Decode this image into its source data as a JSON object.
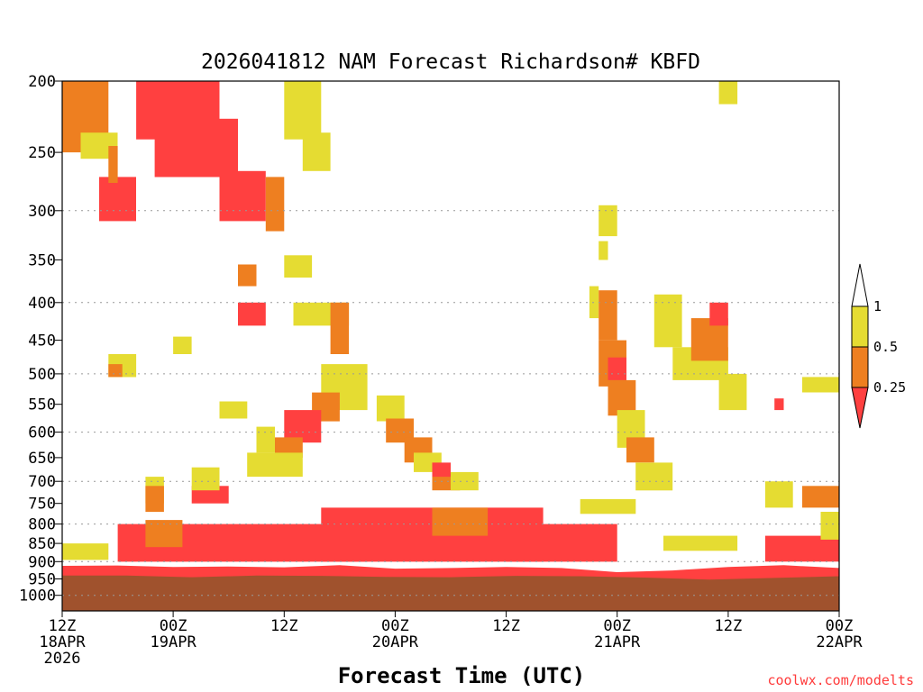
{
  "chart_data": {
    "type": "heatmap",
    "title": "2026041812 NAM Forecast Richardson# KBFD",
    "xlabel": "Forecast Time (UTC)",
    "ylabel": "",
    "source": "coolwx.com/modelts",
    "xlim_hours": [
      0,
      84
    ],
    "ylim_hpa": [
      200,
      1050
    ],
    "y_scale": "log",
    "y_ticks": [
      200,
      250,
      300,
      350,
      400,
      450,
      500,
      550,
      600,
      650,
      700,
      750,
      800,
      850,
      900,
      950,
      1000
    ],
    "y_gridlines": [
      300,
      400,
      500,
      600,
      700,
      800,
      900,
      1000
    ],
    "x_ticks": [
      {
        "hour": 0,
        "lines": [
          "12Z",
          "18APR",
          "2026"
        ]
      },
      {
        "hour": 12,
        "lines": [
          "00Z",
          "19APR"
        ]
      },
      {
        "hour": 24,
        "lines": [
          "12Z"
        ]
      },
      {
        "hour": 36,
        "lines": [
          "00Z",
          "20APR"
        ]
      },
      {
        "hour": 48,
        "lines": [
          "12Z"
        ]
      },
      {
        "hour": 60,
        "lines": [
          "00Z",
          "21APR"
        ]
      },
      {
        "hour": 72,
        "lines": [
          "12Z"
        ]
      },
      {
        "hour": 84,
        "lines": [
          "00Z",
          "22APR"
        ]
      }
    ],
    "ground": {
      "color": "#a0522d",
      "surface_pressure_hpa": [
        940,
        940,
        945,
        940,
        941,
        944,
        945,
        941,
        942,
        946,
        952,
        947,
        942
      ]
    },
    "legend": {
      "placement": "right",
      "boundaries": [
        "1",
        "0.5",
        "0.25"
      ],
      "bins": [
        {
          "range": "0.5-1",
          "color": "#e5dc32"
        },
        {
          "range": "0.25-0.5",
          "color": "#ee7f20"
        },
        {
          "range": "<0.25",
          "color": "#ff4040"
        }
      ]
    },
    "regions": [
      {
        "bin": "<0.25",
        "x": [
          0,
          84
        ],
        "p_top": [
          912,
          911,
          915,
          914,
          916,
          910,
          920,
          918,
          915,
          918,
          930,
          925,
          915,
          910,
          918
        ],
        "p_bottom": "surface"
      },
      {
        "bin": "<0.25",
        "x": [
          6,
          33
        ],
        "p": [
          800,
          900
        ]
      },
      {
        "bin": "<0.25",
        "x": [
          28,
          52
        ],
        "p": [
          760,
          900
        ]
      },
      {
        "bin": "<0.25",
        "x": [
          48,
          60
        ],
        "p": [
          800,
          900
        ]
      },
      {
        "bin": "<0.25",
        "x": [
          76,
          84
        ],
        "p": [
          830,
          900
        ]
      },
      {
        "bin": "0.25-0.5",
        "x": [
          9,
          13
        ],
        "p": [
          790,
          860
        ]
      },
      {
        "bin": "0.25-0.5",
        "x": [
          40,
          46
        ],
        "p": [
          760,
          830
        ]
      },
      {
        "bin": "0.5-1",
        "x": [
          0,
          5
        ],
        "p": [
          850,
          895
        ]
      },
      {
        "bin": "0.5-1",
        "x": [
          56,
          62
        ],
        "p": [
          740,
          775
        ]
      },
      {
        "bin": "0.5-1",
        "x": [
          65,
          73
        ],
        "p": [
          830,
          870
        ]
      },
      {
        "bin": "<0.25",
        "x": [
          8,
          17
        ],
        "p": [
          200,
          240
        ]
      },
      {
        "bin": "<0.25",
        "x": [
          10,
          19
        ],
        "p": [
          225,
          270
        ]
      },
      {
        "bin": "<0.25",
        "x": [
          4,
          8
        ],
        "p": [
          270,
          310
        ]
      },
      {
        "bin": "0.25-0.5",
        "x": [
          0,
          5
        ],
        "p": [
          200,
          250
        ]
      },
      {
        "bin": "0.5-1",
        "x": [
          2,
          6
        ],
        "p": [
          235,
          255
        ]
      },
      {
        "bin": "0.25-0.5",
        "x": [
          5,
          6
        ],
        "p": [
          245,
          275
        ]
      },
      {
        "bin": "<0.25",
        "x": [
          17,
          22
        ],
        "p": [
          265,
          310
        ]
      },
      {
        "bin": "0.25-0.5",
        "x": [
          22,
          24
        ],
        "p": [
          270,
          320
        ]
      },
      {
        "bin": "0.5-1",
        "x": [
          24,
          28
        ],
        "p": [
          200,
          240
        ]
      },
      {
        "bin": "0.5-1",
        "x": [
          26,
          29
        ],
        "p": [
          235,
          265
        ]
      },
      {
        "bin": "0.5-1",
        "x": [
          24,
          27
        ],
        "p": [
          345,
          370
        ]
      },
      {
        "bin": "0.25-0.5",
        "x": [
          19,
          21
        ],
        "p": [
          355,
          380
        ]
      },
      {
        "bin": "<0.25",
        "x": [
          19,
          22
        ],
        "p": [
          400,
          430
        ]
      },
      {
        "bin": "0.5-1",
        "x": [
          25,
          31
        ],
        "p": [
          400,
          430
        ]
      },
      {
        "bin": "0.25-0.5",
        "x": [
          29,
          31
        ],
        "p": [
          400,
          470
        ]
      },
      {
        "bin": "0.5-1",
        "x": [
          28,
          33
        ],
        "p": [
          485,
          560
        ]
      },
      {
        "bin": "0.25-0.5",
        "x": [
          27,
          30
        ],
        "p": [
          530,
          580
        ]
      },
      {
        "bin": "<0.25",
        "x": [
          24,
          28
        ],
        "p": [
          560,
          620
        ]
      },
      {
        "bin": "0.25-0.5",
        "x": [
          23,
          26
        ],
        "p": [
          610,
          650
        ]
      },
      {
        "bin": "0.5-1",
        "x": [
          5,
          8
        ],
        "p": [
          470,
          505
        ]
      },
      {
        "bin": "0.25-0.5",
        "x": [
          5,
          6.5
        ],
        "p": [
          485,
          505
        ]
      },
      {
        "bin": "0.5-1",
        "x": [
          12,
          14
        ],
        "p": [
          445,
          470
        ]
      },
      {
        "bin": "0.5-1",
        "x": [
          17,
          20
        ],
        "p": [
          545,
          575
        ]
      },
      {
        "bin": "0.5-1",
        "x": [
          21,
          23
        ],
        "p": [
          590,
          640
        ]
      },
      {
        "bin": "0.5-1",
        "x": [
          20,
          26
        ],
        "p": [
          640,
          690
        ]
      },
      {
        "bin": "<0.25",
        "x": [
          14,
          18
        ],
        "p": [
          710,
          750
        ]
      },
      {
        "bin": "0.5-1",
        "x": [
          14,
          17
        ],
        "p": [
          670,
          720
        ]
      },
      {
        "bin": "0.5-1",
        "x": [
          9,
          11
        ],
        "p": [
          690,
          750
        ]
      },
      {
        "bin": "0.25-0.5",
        "x": [
          9,
          11
        ],
        "p": [
          710,
          770
        ]
      },
      {
        "bin": "0.5-1",
        "x": [
          34,
          37
        ],
        "p": [
          535,
          580
        ]
      },
      {
        "bin": "0.25-0.5",
        "x": [
          35,
          38
        ],
        "p": [
          575,
          620
        ]
      },
      {
        "bin": "0.25-0.5",
        "x": [
          37,
          40
        ],
        "p": [
          610,
          660
        ]
      },
      {
        "bin": "0.5-1",
        "x": [
          38,
          41
        ],
        "p": [
          640,
          680
        ]
      },
      {
        "bin": "<0.25",
        "x": [
          40,
          42
        ],
        "p": [
          660,
          700
        ]
      },
      {
        "bin": "0.25-0.5",
        "x": [
          40,
          43
        ],
        "p": [
          690,
          720
        ]
      },
      {
        "bin": "0.5-1",
        "x": [
          42,
          45
        ],
        "p": [
          680,
          720
        ]
      },
      {
        "bin": "0.5-1",
        "x": [
          58,
          60
        ],
        "p": [
          295,
          325
        ]
      },
      {
        "bin": "0.5-1",
        "x": [
          58,
          59
        ],
        "p": [
          330,
          350
        ]
      },
      {
        "bin": "0.5-1",
        "x": [
          57,
          58
        ],
        "p": [
          380,
          420
        ]
      },
      {
        "bin": "0.25-0.5",
        "x": [
          58,
          60
        ],
        "p": [
          385,
          450
        ]
      },
      {
        "bin": "0.25-0.5",
        "x": [
          58,
          61
        ],
        "p": [
          450,
          520
        ]
      },
      {
        "bin": "<0.25",
        "x": [
          59,
          61
        ],
        "p": [
          475,
          510
        ]
      },
      {
        "bin": "0.25-0.5",
        "x": [
          59,
          62
        ],
        "p": [
          510,
          570
        ]
      },
      {
        "bin": "0.5-1",
        "x": [
          60,
          63
        ],
        "p": [
          560,
          630
        ]
      },
      {
        "bin": "0.25-0.5",
        "x": [
          61,
          64
        ],
        "p": [
          610,
          660
        ]
      },
      {
        "bin": "0.5-1",
        "x": [
          62,
          66
        ],
        "p": [
          660,
          720
        ]
      },
      {
        "bin": "0.5-1",
        "x": [
          64,
          67
        ],
        "p": [
          390,
          460
        ]
      },
      {
        "bin": "0.5-1",
        "x": [
          66,
          72
        ],
        "p": [
          460,
          510
        ]
      },
      {
        "bin": "0.25-0.5",
        "x": [
          68,
          72
        ],
        "p": [
          420,
          480
        ]
      },
      {
        "bin": "<0.25",
        "x": [
          70,
          72
        ],
        "p": [
          400,
          430
        ]
      },
      {
        "bin": "0.5-1",
        "x": [
          71,
          74
        ],
        "p": [
          500,
          560
        ]
      },
      {
        "bin": "0.5-1",
        "x": [
          71,
          73
        ],
        "p": [
          200,
          215
        ]
      },
      {
        "bin": "<0.25",
        "x": [
          77,
          78
        ],
        "p": [
          540,
          560
        ]
      },
      {
        "bin": "0.5-1",
        "x": [
          80,
          84
        ],
        "p": [
          505,
          530
        ]
      },
      {
        "bin": "0.5-1",
        "x": [
          76,
          79
        ],
        "p": [
          700,
          760
        ]
      },
      {
        "bin": "0.25-0.5",
        "x": [
          80,
          84
        ],
        "p": [
          710,
          760
        ]
      },
      {
        "bin": "0.5-1",
        "x": [
          82,
          84
        ],
        "p": [
          770,
          840
        ]
      }
    ]
  }
}
